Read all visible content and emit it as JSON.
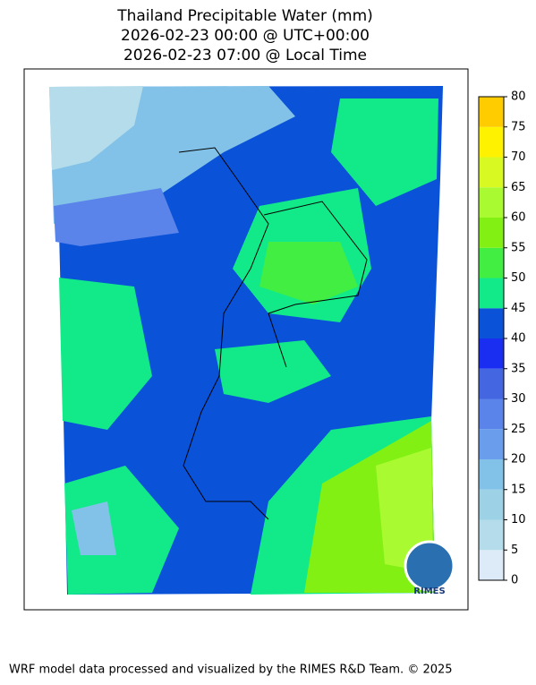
{
  "map": {
    "title": [
      "Thailand Precipitable Water (mm)",
      "2026-02-23 00:00 @ UTC+00:00",
      "2026-02-23 07:00 @ Local Time"
    ],
    "colorbar": {
      "lim": [
        0,
        80
      ],
      "ticks": [
        0,
        5,
        10,
        15,
        20,
        25,
        30,
        35,
        40,
        45,
        50,
        55,
        60,
        65,
        70,
        75,
        80
      ],
      "colors": [
        "#dcebf7",
        "#b5dcea",
        "#9dd2e6",
        "#82c2e8",
        "#6a9eec",
        "#5a84ea",
        "#4466e0",
        "#1a2ef2",
        "#0a52d8",
        "#12ea8a",
        "#42ee42",
        "#82f012",
        "#aafa32",
        "#d8fa22",
        "#fff200",
        "#ffcc00"
      ]
    },
    "logo": "RIMES"
  },
  "footer": "WRF model data processed and visualized by the RIMES R&D Team. © 2025"
}
